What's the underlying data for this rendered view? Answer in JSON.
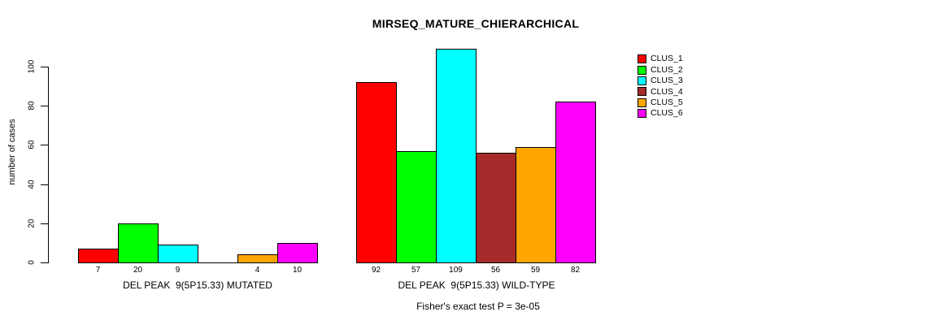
{
  "chart_data": {
    "type": "bar",
    "title": "MIRSEQ_MATURE_CHIERARCHICAL",
    "ylabel": "number of cases",
    "ylim": [
      0,
      100
    ],
    "yticks": [
      0,
      20,
      40,
      60,
      80,
      100
    ],
    "grid": false,
    "legend_position": "right",
    "categories": [
      "DEL PEAK  9(5P15.33) MUTATED",
      "DEL PEAK  9(5P15.33) WILD-TYPE"
    ],
    "series": [
      {
        "name": "CLUS_1",
        "color": "#FF0000",
        "values": [
          7,
          92
        ]
      },
      {
        "name": "CLUS_2",
        "color": "#00FF00",
        "values": [
          20,
          57
        ]
      },
      {
        "name": "CLUS_3",
        "color": "#00FFFF",
        "values": [
          9,
          109
        ]
      },
      {
        "name": "CLUS_4",
        "color": "#A52A2A",
        "values": [
          0,
          56
        ]
      },
      {
        "name": "CLUS_5",
        "color": "#FFA500",
        "values": [
          4,
          59
        ]
      },
      {
        "name": "CLUS_6",
        "color": "#FF00FF",
        "values": [
          10,
          82
        ]
      }
    ],
    "bar_value_labels": [
      [
        "7",
        "20",
        "9",
        "",
        "4",
        "10"
      ],
      [
        "92",
        "57",
        "109",
        "56",
        "59",
        "82"
      ]
    ],
    "annotation": "Fisher's exact test P = 3e-05",
    "axis_color": "#000000"
  }
}
